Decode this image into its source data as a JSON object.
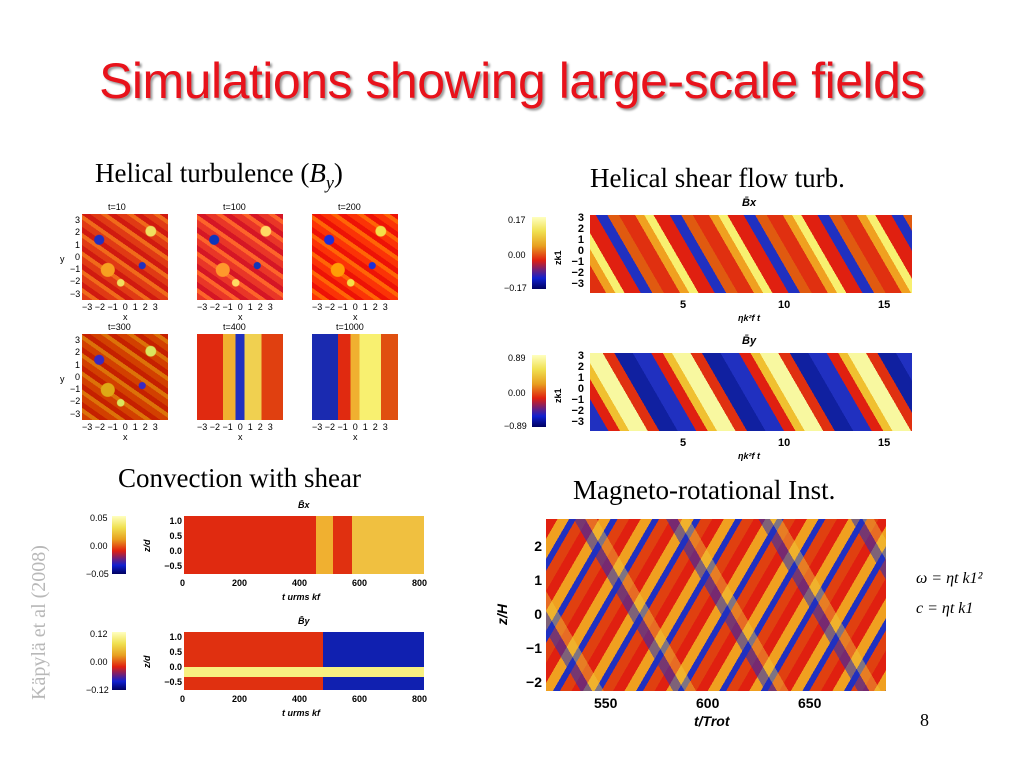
{
  "title": "Simulations showing large-scale fields",
  "captions": {
    "helical_pre": "Helical turbulence (",
    "helical_var": "B",
    "helical_sub": "y",
    "helical_post": ")",
    "shear_flow": "Helical shear flow turb.",
    "convection": "Convection with shear",
    "mri": "Magneto-rotational Inst."
  },
  "credit": "Käpylä et al (2008)",
  "page_number": "8",
  "helical_panels": {
    "times": [
      "t=10",
      "t=100",
      "t=200",
      "t=300",
      "t=400",
      "t=1000"
    ],
    "yticks": [
      "3",
      "2",
      "1",
      "0",
      "−1",
      "−2",
      "−3"
    ],
    "xticks": "−3 −2 −1  0  1  2  3",
    "xlabel": "x",
    "ylabel": "y"
  },
  "shear_panels": {
    "top": {
      "label": "B̄x",
      "cb_top": "0.17",
      "cb_mid": "0.00",
      "cb_bot": "−0.17"
    },
    "bottom": {
      "label": "B̄y",
      "cb_top": "0.89",
      "cb_mid": "0.00",
      "cb_bot": "−0.89"
    },
    "yticks": [
      "3",
      "2",
      "1",
      "0",
      "−1",
      "−2",
      "−3"
    ],
    "ylabel": "zk1",
    "xticks": [
      "5",
      "10",
      "15"
    ],
    "xlabel": "ηk²f t"
  },
  "convection_panels": {
    "top": {
      "label": "B̄x",
      "cb_top": "0.05",
      "cb_mid": "0.00",
      "cb_bot": "−0.05"
    },
    "bottom": {
      "label": "B̄y",
      "cb_top": "0.12",
      "cb_mid": "0.00",
      "cb_bot": "−0.12"
    },
    "yticks": [
      "1.0",
      "0.5",
      "0.0",
      "−0.5"
    ],
    "ylabel": "z/d",
    "xticks": [
      "0",
      "200",
      "400",
      "600",
      "800"
    ],
    "xlabel": "t urms kf"
  },
  "mri_panel": {
    "yticks": [
      "2",
      "1",
      "0",
      "−1",
      "−2"
    ],
    "ylabel": "z/H",
    "xticks": [
      "550",
      "600",
      "650"
    ],
    "xlabel": "t/Trot"
  },
  "formulas": {
    "omega": "ω = ηt k1²",
    "c": "c = ηt k1"
  }
}
